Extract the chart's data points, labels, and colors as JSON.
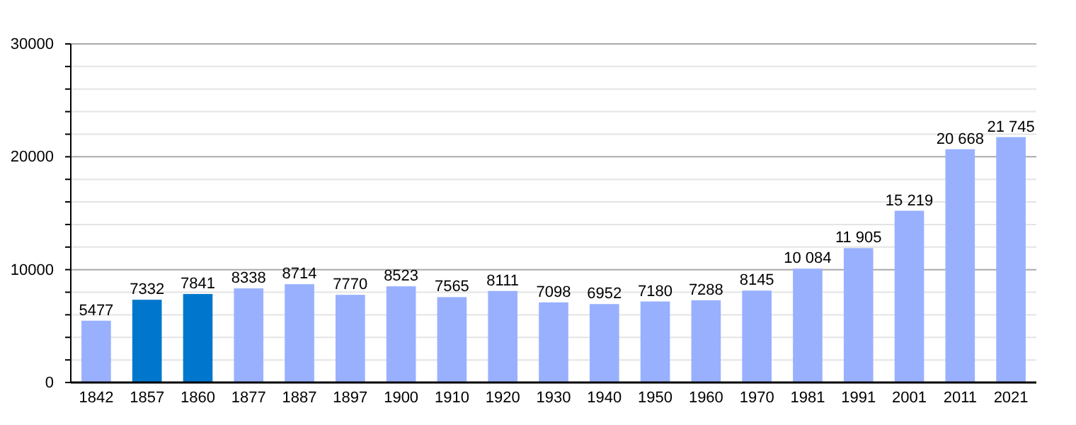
{
  "chart_data": {
    "type": "bar",
    "categories": [
      "1842",
      "1857",
      "1860",
      "1877",
      "1887",
      "1897",
      "1900",
      "1910",
      "1920",
      "1930",
      "1940",
      "1950",
      "1960",
      "1970",
      "1981",
      "1991",
      "2001",
      "2011",
      "2021"
    ],
    "values": [
      5477,
      7332,
      7841,
      8338,
      8714,
      7770,
      8523,
      7565,
      8111,
      7098,
      6952,
      7180,
      7288,
      8145,
      10084,
      11905,
      15219,
      20668,
      21745
    ],
    "colors": [
      "#99b0ff",
      "#0077cc",
      "#0077cc",
      "#99b0ff",
      "#99b0ff",
      "#99b0ff",
      "#99b0ff",
      "#99b0ff",
      "#99b0ff",
      "#99b0ff",
      "#99b0ff",
      "#99b0ff",
      "#99b0ff",
      "#99b0ff",
      "#99b0ff",
      "#99b0ff",
      "#99b0ff",
      "#99b0ff",
      "#99b0ff"
    ],
    "value_labels": [
      "5477",
      "7332",
      "7841",
      "8338",
      "8714",
      "7770",
      "8523",
      "7565",
      "8111",
      "7098",
      "6952",
      "7180",
      "7288",
      "8145",
      "10 084",
      "11 905",
      "15 219",
      "20 668",
      "21 745"
    ],
    "ylim": [
      0,
      30000
    ],
    "yticks": [
      0,
      {
        "value": 2000,
        "label": null
      },
      {
        "value": 4000,
        "label": null
      },
      {
        "value": 6000,
        "label": null
      },
      {
        "value": 8000,
        "label": null
      },
      10000,
      {
        "value": 12000,
        "label": null
      },
      {
        "value": 14000,
        "label": null
      },
      {
        "value": 16000,
        "label": null
      },
      {
        "value": 18000,
        "label": null
      },
      20000,
      {
        "value": 22000,
        "label": null
      },
      {
        "value": 24000,
        "label": null
      },
      {
        "value": 26000,
        "label": null
      },
      {
        "value": 28000,
        "label": null
      },
      30000
    ],
    "grid": true
  }
}
